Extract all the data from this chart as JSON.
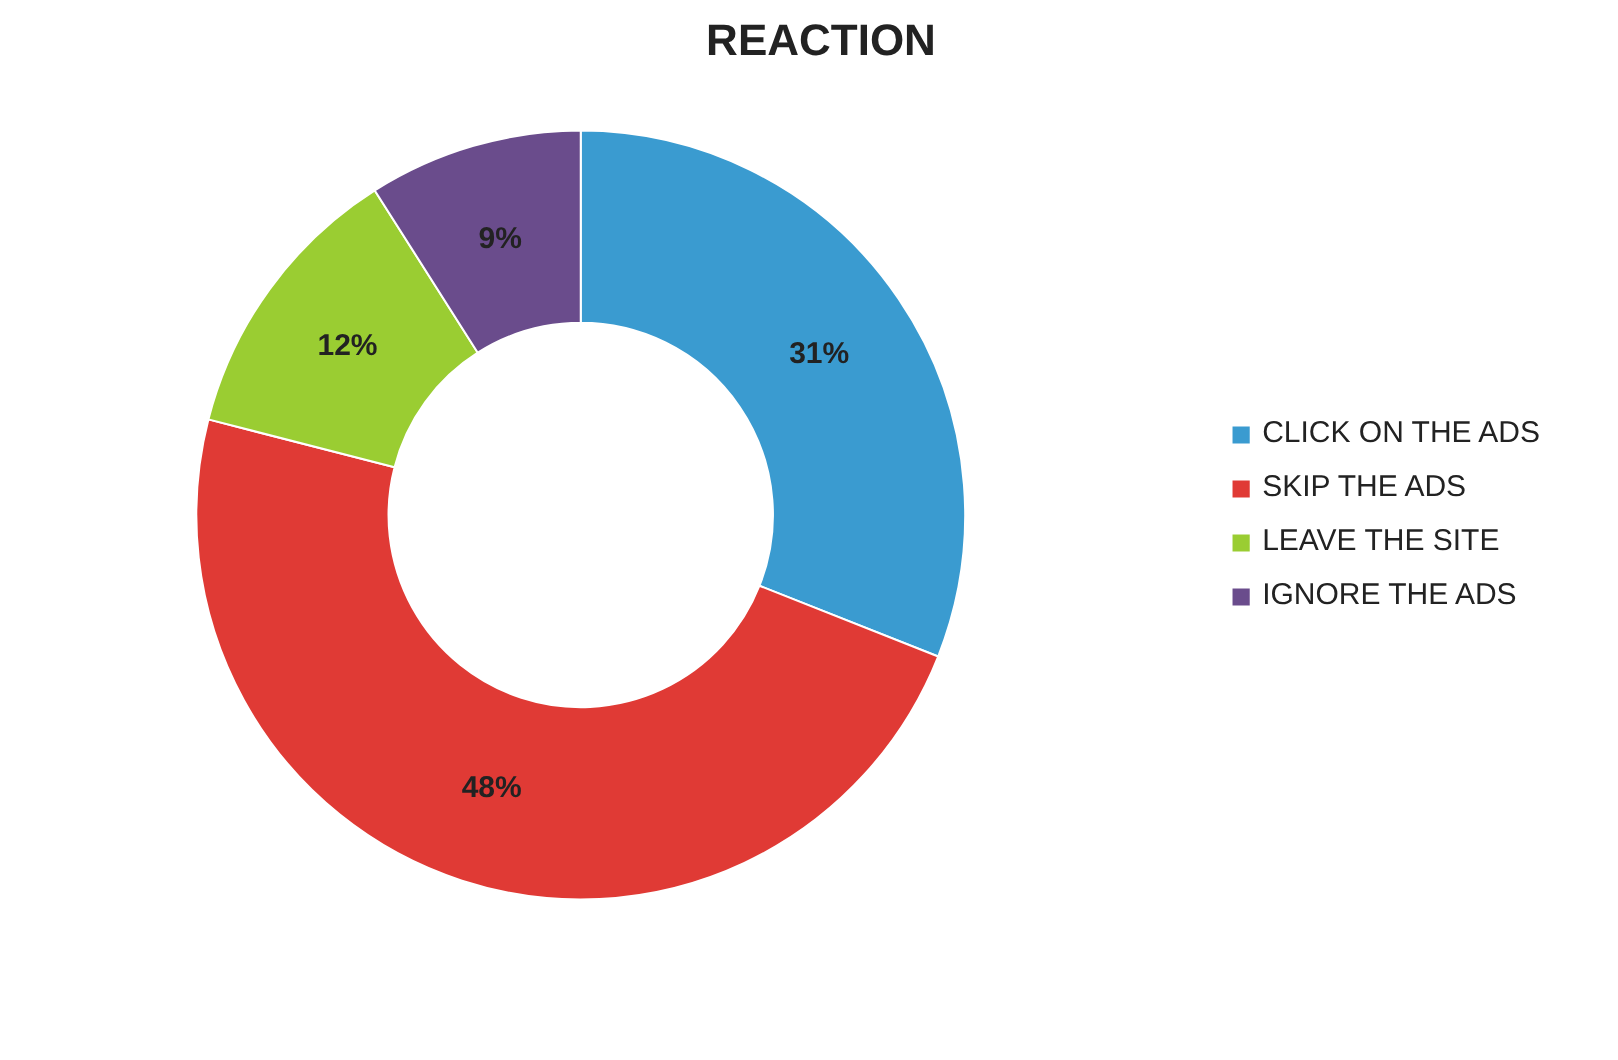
{
  "chart_data": {
    "type": "donut",
    "title": "REACTION",
    "categories": [
      "CLICK ON THE ADS",
      "SKIP THE ADS",
      "LEAVE THE SITE",
      "IGNORE THE ADS"
    ],
    "values": [
      31,
      48,
      12,
      9
    ],
    "colors": [
      "#3a9bd0",
      "#e03a35",
      "#9acd32",
      "#6a4c8c"
    ],
    "value_labels": [
      "31%",
      "48%",
      "12%",
      "9%"
    ],
    "legend": "right"
  }
}
